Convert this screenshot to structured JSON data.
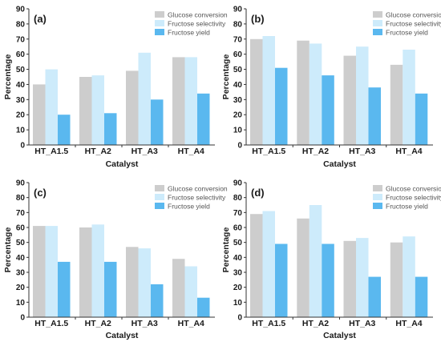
{
  "chart_data": [
    {
      "type": "bar",
      "panel_label": "(a)",
      "categories": [
        "HT_A1.5",
        "HT_A2",
        "HT_A3",
        "HT_A4"
      ],
      "series": [
        {
          "name": "Glucose conversion",
          "values": [
            40,
            45,
            49,
            58
          ]
        },
        {
          "name": "Fructose selectivity",
          "values": [
            50,
            46,
            61,
            58
          ]
        },
        {
          "name": "Fructose yield",
          "values": [
            20,
            21,
            30,
            34
          ]
        }
      ],
      "xlabel": "Catalyst",
      "ylabel": "Percentage",
      "ylim": [
        0,
        90
      ],
      "yticks": [
        0,
        10,
        20,
        30,
        40,
        50,
        60,
        70,
        80,
        90
      ],
      "legend": "top-right",
      "grid": false
    },
    {
      "type": "bar",
      "panel_label": "(b)",
      "categories": [
        "HT_A1.5",
        "HT_A2",
        "HT_A3",
        "HT_A4"
      ],
      "series": [
        {
          "name": "Glucose conversion",
          "values": [
            70,
            69,
            59,
            53
          ]
        },
        {
          "name": "Fructose selectivity",
          "values": [
            72,
            67,
            65,
            63
          ]
        },
        {
          "name": "Fructose yield",
          "values": [
            51,
            46,
            38,
            34
          ]
        }
      ],
      "xlabel": "Catalyst",
      "ylabel": "Percentage",
      "ylim": [
        0,
        90
      ],
      "yticks": [
        0,
        10,
        20,
        30,
        40,
        50,
        60,
        70,
        80,
        90
      ],
      "legend": "top-right",
      "grid": false
    },
    {
      "type": "bar",
      "panel_label": "(c)",
      "categories": [
        "HT_A1.5",
        "HT_A2",
        "HT_A3",
        "HT_A4"
      ],
      "series": [
        {
          "name": "Glucose conversion",
          "values": [
            61,
            60,
            47,
            39
          ]
        },
        {
          "name": "Fructose selectivity",
          "values": [
            61,
            62,
            46,
            34
          ]
        },
        {
          "name": "Fructose yield",
          "values": [
            37,
            37,
            22,
            13
          ]
        }
      ],
      "xlabel": "Catalyst",
      "ylabel": "Percentage",
      "ylim": [
        0,
        90
      ],
      "yticks": [
        0,
        10,
        20,
        30,
        40,
        50,
        60,
        70,
        80,
        90
      ],
      "legend": "top-right",
      "grid": false
    },
    {
      "type": "bar",
      "panel_label": "(d)",
      "categories": [
        "HT_A1.5",
        "HT_A2",
        "HT_A3",
        "HT_A4"
      ],
      "series": [
        {
          "name": "Glucose conversion",
          "values": [
            69,
            66,
            51,
            50
          ]
        },
        {
          "name": "Fructose selectivity",
          "values": [
            71,
            75,
            53,
            54
          ]
        },
        {
          "name": "Fructose yield",
          "values": [
            49,
            49,
            27,
            27
          ]
        }
      ],
      "xlabel": "Catalyst",
      "ylabel": "Percentage",
      "ylim": [
        0,
        90
      ],
      "yticks": [
        0,
        10,
        20,
        30,
        40,
        50,
        60,
        70,
        80,
        90
      ],
      "legend": "top-right",
      "grid": false
    }
  ],
  "colors": {
    "glucose_conversion": "#cdcdcd",
    "fructose_selectivity": "#cdebfb",
    "fructose_yield": "#5ab8ef",
    "axis": "#333333"
  }
}
